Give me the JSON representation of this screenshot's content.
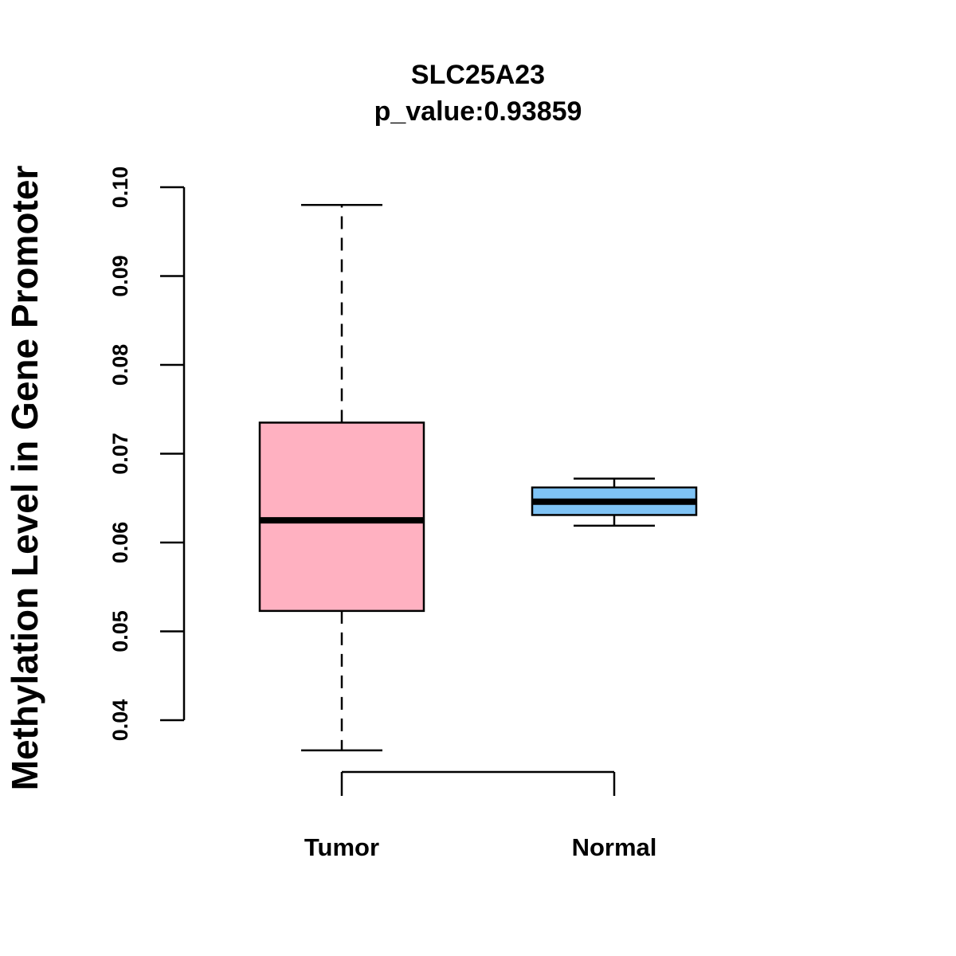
{
  "chart_data": {
    "type": "boxplot",
    "title": "SLC25A23",
    "subtitle": "p_value:0.93859",
    "xlabel": "",
    "ylabel": "Methylation Level in Gene Promoter",
    "ylim": [
      0.04,
      0.1
    ],
    "yticks": [
      "0.04",
      "0.05",
      "0.06",
      "0.07",
      "0.08",
      "0.09",
      "0.10"
    ],
    "categories": [
      "Tumor",
      "Normal"
    ],
    "series": [
      {
        "name": "Tumor",
        "color": "#FFB1C1",
        "whisker_low": 0.0366,
        "q1": 0.0523,
        "median": 0.0625,
        "q3": 0.0735,
        "whisker_high": 0.098
      },
      {
        "name": "Normal",
        "color": "#7FC3F5",
        "whisker_low": 0.0619,
        "q1": 0.0631,
        "median": 0.0646,
        "q3": 0.0662,
        "whisker_high": 0.0672
      }
    ],
    "grid": false
  }
}
